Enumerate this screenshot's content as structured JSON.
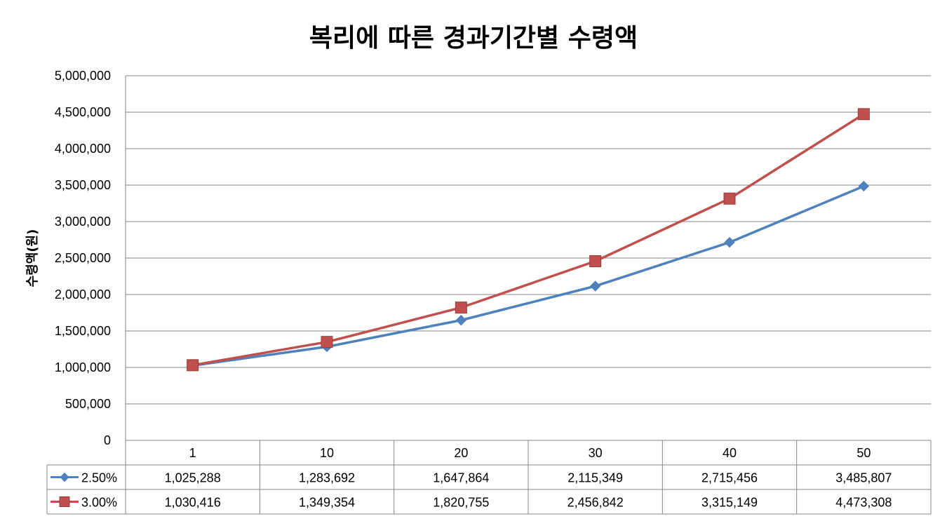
{
  "chart_data": {
    "type": "line",
    "title": "복리에 따른 경과기간별 수령액",
    "xlabel": "",
    "ylabel": "수령액(원)",
    "categories": [
      "1",
      "10",
      "20",
      "30",
      "40",
      "50"
    ],
    "ylim": [
      0,
      5000000
    ],
    "yticks": [
      "0",
      "500,000",
      "1,000,000",
      "1,500,000",
      "2,000,000",
      "2,500,000",
      "3,000,000",
      "3,500,000",
      "4,000,000",
      "4,500,000",
      "5,000,000"
    ],
    "grid": true,
    "legend": "data-table",
    "series": [
      {
        "name": "2.50%",
        "marker": "diamond",
        "color": "#4F81BD",
        "values": [
          1025288,
          1283692,
          1647864,
          2115349,
          2715456,
          3485807
        ],
        "labels": [
          "1,025,288",
          "1,283,692",
          "1,647,864",
          "2,115,349",
          "2,715,456",
          "3,485,807"
        ]
      },
      {
        "name": "3.00%",
        "marker": "square",
        "color": "#C0504D",
        "values": [
          1030416,
          1349354,
          1820755,
          2456842,
          3315149,
          4473308
        ],
        "labels": [
          "1,030,416",
          "1,349,354",
          "1,820,755",
          "2,456,842",
          "3,315,149",
          "4,473,308"
        ]
      }
    ]
  }
}
